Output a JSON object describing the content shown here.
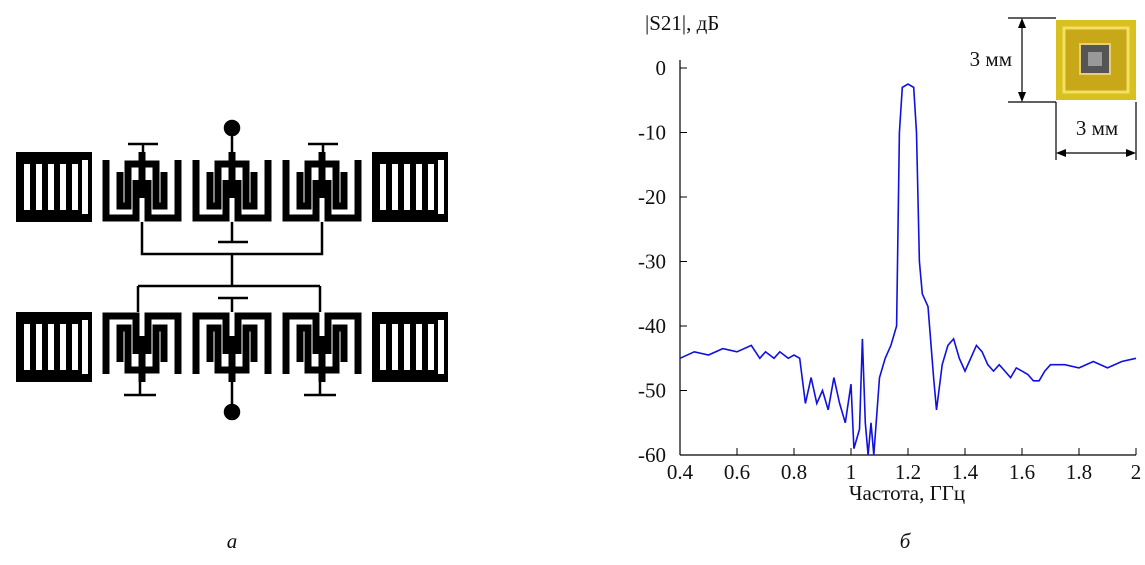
{
  "chart_data": {
    "type": "line",
    "y_label": "|S21|, дБ",
    "x_label": "Частота, ГГц",
    "color": "#1010e0",
    "xlim": [
      0.4,
      2
    ],
    "ylim": [
      -60,
      0
    ],
    "xticks": [
      0.4,
      0.6,
      0.8,
      1,
      1.2,
      1.4,
      1.6,
      1.8,
      2
    ],
    "yticks": [
      0,
      -10,
      -20,
      -30,
      -40,
      -50,
      -60
    ],
    "grid": false,
    "x": [
      0.4,
      0.45,
      0.5,
      0.55,
      0.6,
      0.65,
      0.68,
      0.7,
      0.73,
      0.75,
      0.78,
      0.8,
      0.82,
      0.84,
      0.86,
      0.88,
      0.9,
      0.92,
      0.94,
      0.96,
      0.98,
      1.0,
      1.01,
      1.03,
      1.04,
      1.05,
      1.06,
      1.07,
      1.08,
      1.1,
      1.12,
      1.14,
      1.16,
      1.17,
      1.18,
      1.2,
      1.22,
      1.23,
      1.24,
      1.25,
      1.27,
      1.29,
      1.3,
      1.32,
      1.34,
      1.36,
      1.38,
      1.4,
      1.42,
      1.44,
      1.46,
      1.48,
      1.5,
      1.52,
      1.54,
      1.56,
      1.58,
      1.6,
      1.62,
      1.64,
      1.66,
      1.68,
      1.7,
      1.75,
      1.8,
      1.85,
      1.9,
      1.95,
      2.0
    ],
    "values": [
      -45,
      -44,
      -44.5,
      -43.5,
      -44,
      -43,
      -45,
      -44,
      -45,
      -44,
      -45,
      -44.5,
      -45,
      -52,
      -48,
      -52,
      -50,
      -53,
      -48,
      -52,
      -55,
      -49,
      -59,
      -56,
      -42,
      -55,
      -60,
      -55,
      -60,
      -48,
      -45,
      -43,
      -40,
      -10,
      -3,
      -2.5,
      -3,
      -10,
      -30,
      -35,
      -37,
      -48,
      -53,
      -46,
      -43,
      -42,
      -45,
      -47,
      -45,
      -43,
      -44,
      -46,
      -47,
      -46,
      -47,
      -48,
      -46.5,
      -47,
      -47.5,
      -48.5,
      -48.5,
      -47,
      -46,
      -46,
      -46.5,
      -45.5,
      -46.5,
      -45.5,
      -45
    ]
  },
  "figure": {
    "panel_labels": [
      "а",
      "б"
    ]
  },
  "inset": {
    "height_label": "3 мм",
    "width_label": "3 мм"
  }
}
